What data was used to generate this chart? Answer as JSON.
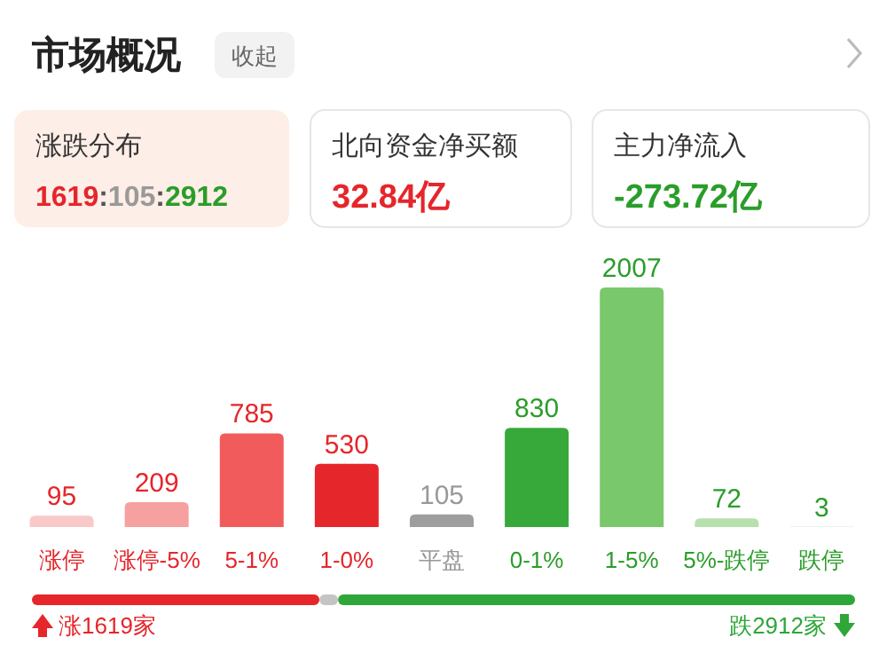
{
  "chart_data": [
    {
      "type": "other",
      "title": "市场概况",
      "annotations": [
        "收起",
        "涨跌分布",
        "1619:105:2912",
        "北向资金净买额",
        "32.84亿",
        "主力净流入",
        "-273.72亿"
      ]
    },
    {
      "type": "bar",
      "categories": [
        "涨停",
        "涨停-5%",
        "5-1%",
        "1-0%",
        "平盘",
        "0-1%",
        "1-5%",
        "5%-跌停",
        "跌停"
      ],
      "values": [
        95,
        209,
        785,
        530,
        105,
        830,
        2007,
        72,
        3
      ],
      "colors": [
        "#f9c9c9",
        "#f6a0a0",
        "#f25b5b",
        "#e5262b",
        "#9e9e9e",
        "#36a93a",
        "#79c86b",
        "#b8e0ad",
        "#d3ecd0"
      ],
      "data_labels": true
    },
    {
      "type": "bar",
      "orientation": "horizontal",
      "stacked": true,
      "categories": [
        null
      ],
      "series": [
        {
          "color": "#e5262b",
          "values": [
            1619
          ],
          "value_labels": [
            "涨1619家"
          ]
        },
        {
          "color": "#c4c4c4",
          "values": [
            105
          ],
          "value_labels": [
            null
          ]
        },
        {
          "color": "#2ea738",
          "values": [
            2912
          ],
          "value_labels": [
            "跌2912家"
          ]
        }
      ]
    }
  ]
}
